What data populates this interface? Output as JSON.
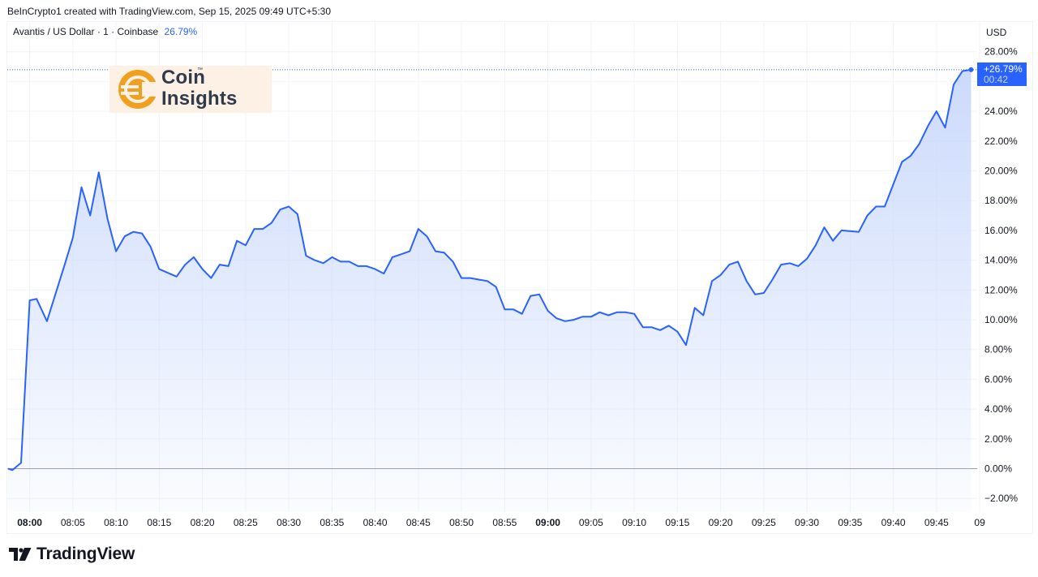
{
  "header": {
    "credit": "BeInCrypto1 created with TradingView.com, Sep 15, 2025 09:49 UTC+5:30"
  },
  "legend": {
    "symbol": "Avantis / US Dollar · 1 · Coinbase",
    "change": "26.79%"
  },
  "currency": "USD",
  "watermark": {
    "name": "Coin Insights",
    "line1": "Coin",
    "line2": "Insights",
    "trademark": "™"
  },
  "price_label": {
    "value": "+26.79%",
    "countdown": "00:42"
  },
  "footer": {
    "brand": "TradingView"
  },
  "colors": {
    "line": "#2962ff",
    "area_top": "#c9d8fb",
    "zero_line": "#9598a1",
    "grid": "#f0f3fa",
    "label_bg": "#2962ff",
    "logo_orange": "#f0a01e"
  },
  "icons": {
    "coin_logo": "coin-insights-logo-icon",
    "tv_logo": "tradingview-logo-icon"
  },
  "chart_data": {
    "type": "area",
    "title": "Avantis / US Dollar · 1 · Coinbase",
    "xlabel": "",
    "ylabel": "",
    "ylim": [
      -3.0,
      28.0
    ],
    "grid": true,
    "y_unit": "%",
    "y_ticks": [
      "28.00%",
      "26.00%",
      "24.00%",
      "22.00%",
      "20.00%",
      "18.00%",
      "16.00%",
      "14.00%",
      "12.00%",
      "10.00%",
      "8.00%",
      "6.00%",
      "4.00%",
      "2.00%",
      "0.00%",
      "−2.00%"
    ],
    "x_ticks": [
      {
        "label": "08:00",
        "minutes": 0,
        "bold": true
      },
      {
        "label": "08:05",
        "minutes": 5,
        "bold": false
      },
      {
        "label": "08:10",
        "minutes": 10,
        "bold": false
      },
      {
        "label": "08:15",
        "minutes": 15,
        "bold": false
      },
      {
        "label": "08:20",
        "minutes": 20,
        "bold": false
      },
      {
        "label": "08:25",
        "minutes": 25,
        "bold": false
      },
      {
        "label": "08:30",
        "minutes": 30,
        "bold": false
      },
      {
        "label": "08:35",
        "minutes": 35,
        "bold": false
      },
      {
        "label": "08:40",
        "minutes": 40,
        "bold": false
      },
      {
        "label": "08:45",
        "minutes": 45,
        "bold": false
      },
      {
        "label": "08:50",
        "minutes": 50,
        "bold": false
      },
      {
        "label": "08:55",
        "minutes": 55,
        "bold": false
      },
      {
        "label": "09:00",
        "minutes": 60,
        "bold": true
      },
      {
        "label": "09:05",
        "minutes": 65,
        "bold": false
      },
      {
        "label": "09:10",
        "minutes": 70,
        "bold": false
      },
      {
        "label": "09:15",
        "minutes": 75,
        "bold": false
      },
      {
        "label": "09:20",
        "minutes": 80,
        "bold": false
      },
      {
        "label": "09:25",
        "minutes": 85,
        "bold": false
      },
      {
        "label": "09:30",
        "minutes": 90,
        "bold": false
      },
      {
        "label": "09:35",
        "minutes": 95,
        "bold": false
      },
      {
        "label": "09:40",
        "minutes": 100,
        "bold": false
      },
      {
        "label": "09:45",
        "minutes": 105,
        "bold": false
      },
      {
        "label": "09",
        "minutes": 110,
        "bold": false
      }
    ],
    "series": [
      {
        "name": "Avantis / US Dollar",
        "x_unit": "minutes after 08:00",
        "points": [
          [
            -2.5,
            0.0
          ],
          [
            -2.0,
            -0.1
          ],
          [
            -1.0,
            0.4
          ],
          [
            0.0,
            11.3
          ],
          [
            0.8,
            11.4
          ],
          [
            2.0,
            9.9
          ],
          [
            4.0,
            13.6
          ],
          [
            5.0,
            15.5
          ],
          [
            6.0,
            18.9
          ],
          [
            7.0,
            17.0
          ],
          [
            8.0,
            19.9
          ],
          [
            9.0,
            16.8
          ],
          [
            10.0,
            14.6
          ],
          [
            11.0,
            15.6
          ],
          [
            12.0,
            15.9
          ],
          [
            13.0,
            15.8
          ],
          [
            14.0,
            14.9
          ],
          [
            15.0,
            13.4
          ],
          [
            17.0,
            12.9
          ],
          [
            18.0,
            13.7
          ],
          [
            19.0,
            14.2
          ],
          [
            20.0,
            13.4
          ],
          [
            21.0,
            12.8
          ],
          [
            22.0,
            13.7
          ],
          [
            23.0,
            13.6
          ],
          [
            24.0,
            15.3
          ],
          [
            25.0,
            15.0
          ],
          [
            26.0,
            16.1
          ],
          [
            27.0,
            16.1
          ],
          [
            28.0,
            16.5
          ],
          [
            29.0,
            17.4
          ],
          [
            30.0,
            17.6
          ],
          [
            31.0,
            17.1
          ],
          [
            32.0,
            14.3
          ],
          [
            33.0,
            14.0
          ],
          [
            34.0,
            13.8
          ],
          [
            35.0,
            14.2
          ],
          [
            36.0,
            13.9
          ],
          [
            37.0,
            13.9
          ],
          [
            38.0,
            13.6
          ],
          [
            39.0,
            13.6
          ],
          [
            40.0,
            13.4
          ],
          [
            41.0,
            13.1
          ],
          [
            42.0,
            14.2
          ],
          [
            43.0,
            14.4
          ],
          [
            44.0,
            14.6
          ],
          [
            45.0,
            16.1
          ],
          [
            46.0,
            15.6
          ],
          [
            47.0,
            14.6
          ],
          [
            48.0,
            14.5
          ],
          [
            49.0,
            13.9
          ],
          [
            50.0,
            12.8
          ],
          [
            51.0,
            12.8
          ],
          [
            52.0,
            12.7
          ],
          [
            53.0,
            12.6
          ],
          [
            54.0,
            12.2
          ],
          [
            55.0,
            10.7
          ],
          [
            56.0,
            10.7
          ],
          [
            57.0,
            10.4
          ],
          [
            58.0,
            11.6
          ],
          [
            59.0,
            11.7
          ],
          [
            60.0,
            10.6
          ],
          [
            61.0,
            10.1
          ],
          [
            62.0,
            9.9
          ],
          [
            63.0,
            10.0
          ],
          [
            64.0,
            10.2
          ],
          [
            65.0,
            10.2
          ],
          [
            66.0,
            10.5
          ],
          [
            67.0,
            10.3
          ],
          [
            68.0,
            10.5
          ],
          [
            69.0,
            10.5
          ],
          [
            70.0,
            10.4
          ],
          [
            71.0,
            9.5
          ],
          [
            72.0,
            9.5
          ],
          [
            73.0,
            9.3
          ],
          [
            74.0,
            9.6
          ],
          [
            75.0,
            9.2
          ],
          [
            76.0,
            8.3
          ],
          [
            77.0,
            10.8
          ],
          [
            78.0,
            10.3
          ],
          [
            79.0,
            12.6
          ],
          [
            80.0,
            13.0
          ],
          [
            81.0,
            13.7
          ],
          [
            82.0,
            13.9
          ],
          [
            83.0,
            12.6
          ],
          [
            84.0,
            11.7
          ],
          [
            85.0,
            11.8
          ],
          [
            86.0,
            12.7
          ],
          [
            87.0,
            13.7
          ],
          [
            88.0,
            13.8
          ],
          [
            89.0,
            13.6
          ],
          [
            90.0,
            14.1
          ],
          [
            91.0,
            15.0
          ],
          [
            92.0,
            16.2
          ],
          [
            93.0,
            15.3
          ],
          [
            94.0,
            16.0
          ],
          [
            96.0,
            15.9
          ],
          [
            97.0,
            17.0
          ],
          [
            98.0,
            17.6
          ],
          [
            99.0,
            17.6
          ],
          [
            100.0,
            19.1
          ],
          [
            101.0,
            20.6
          ],
          [
            102.0,
            21.0
          ],
          [
            103.0,
            21.8
          ],
          [
            104.0,
            23.0
          ],
          [
            105.0,
            24.0
          ],
          [
            106.0,
            22.9
          ],
          [
            107.0,
            25.8
          ],
          [
            108.0,
            26.7
          ],
          [
            109.0,
            26.79
          ]
        ]
      }
    ]
  }
}
